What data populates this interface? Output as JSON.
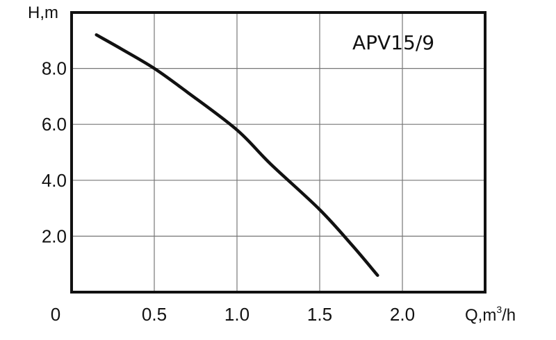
{
  "chart_data": {
    "type": "line",
    "title": "",
    "annotation": "APV15/9",
    "ylabel": "H,m",
    "xlabel_main": "Q,m",
    "xlabel_sup": "3",
    "xlabel_tail": "/h",
    "origin_label": "0",
    "xlim": [
      0,
      2.5
    ],
    "ylim": [
      0,
      10
    ],
    "x_ticks": [
      0.5,
      1.0,
      1.5,
      2.0
    ],
    "x_tick_labels": [
      "0.5",
      "1.0",
      "1.5",
      "2.0"
    ],
    "y_ticks": [
      2,
      4,
      6,
      8
    ],
    "y_tick_labels": [
      "2.0",
      "4.0",
      "6.0",
      "8.0"
    ],
    "grid": true,
    "series": [
      {
        "x": [
          0.15,
          0.3,
          0.5,
          0.7,
          1.0,
          1.2,
          1.5,
          1.7,
          1.85
        ],
        "y": [
          9.2,
          8.7,
          8.0,
          7.15,
          5.8,
          4.6,
          2.95,
          1.65,
          0.6
        ]
      }
    ],
    "colors": {
      "line": "#111111",
      "grid": "#777777",
      "frame": "#111111"
    }
  }
}
